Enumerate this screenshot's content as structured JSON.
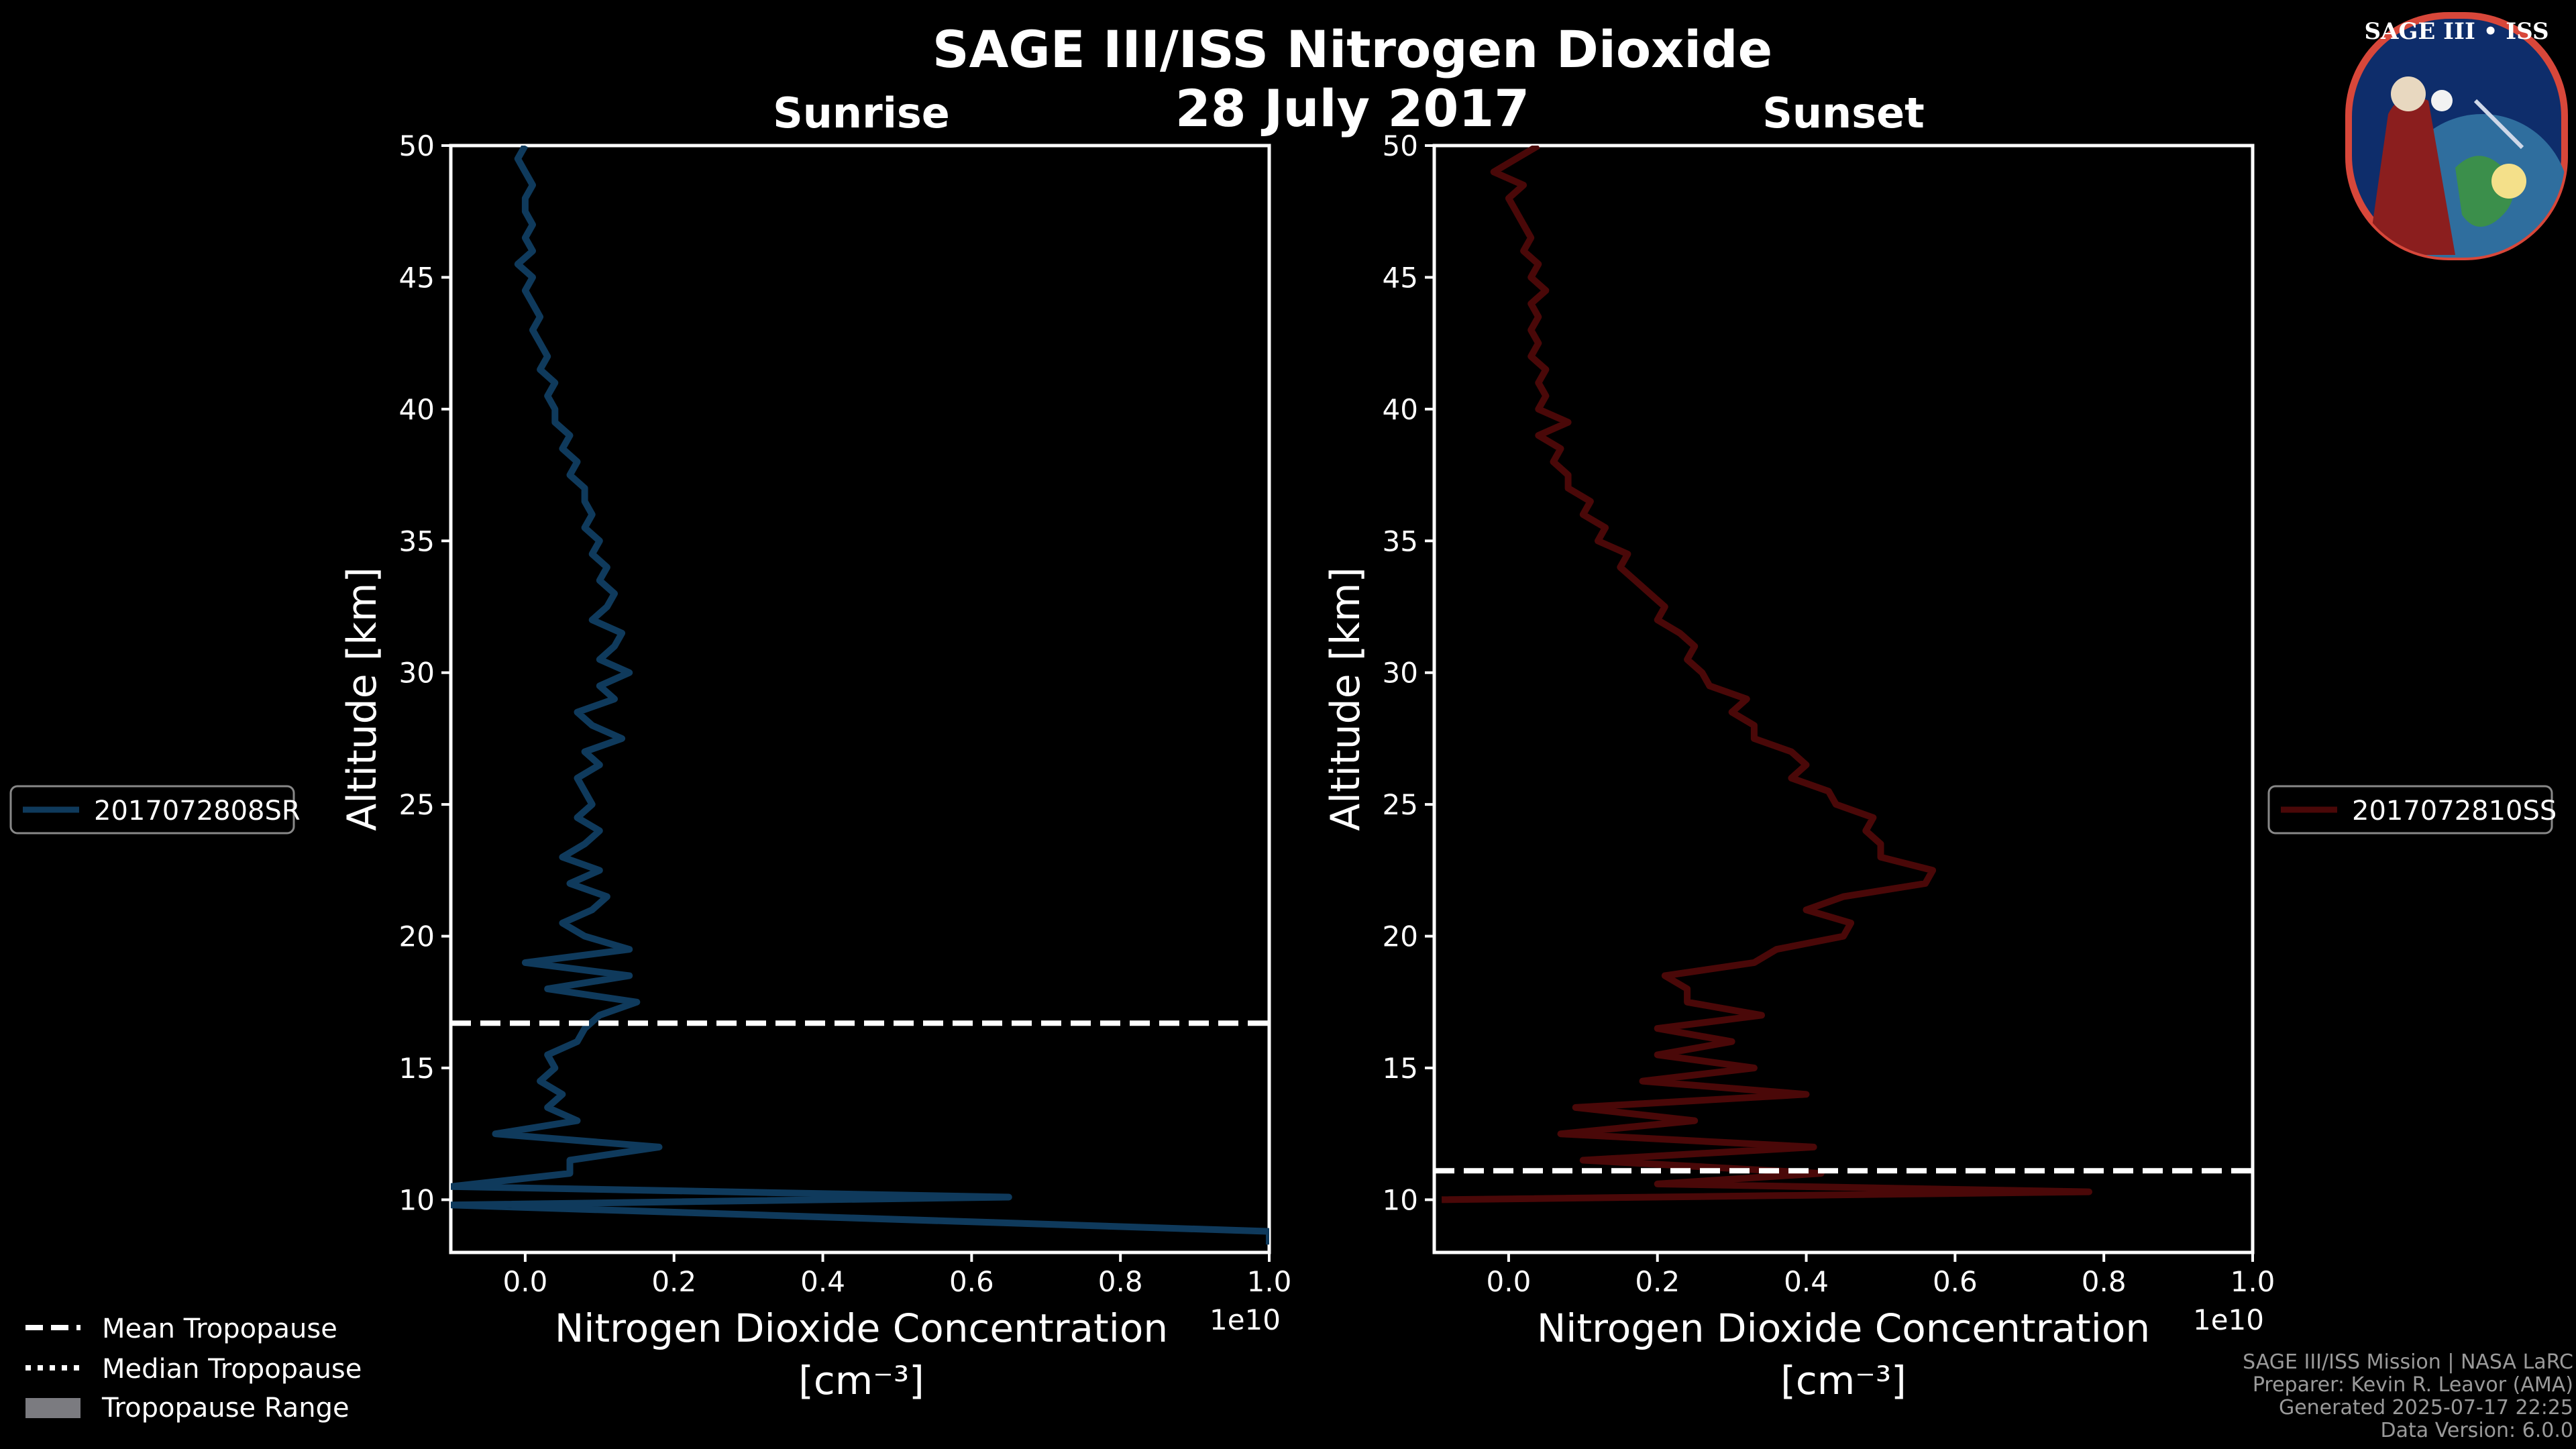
{
  "figure": {
    "title": "SAGE III/ISS Nitrogen Dioxide",
    "date": "28 July 2017"
  },
  "logo": {
    "text": "SAGE III • ISS"
  },
  "footer": {
    "lines": [
      "SAGE III/ISS Mission | NASA LaRC",
      "Preparer: Kevin R. Leavor (AMA)",
      "Generated 2025-07-17 22:25",
      "Data Version: 6.0.0"
    ]
  },
  "legend_tropopause": {
    "items": [
      "Mean Tropopause",
      "Median Tropopause",
      "Tropopause Range"
    ]
  },
  "colors": {
    "sunrise": "#0f3a5c",
    "sunset": "#4a0808",
    "tropopause": "#ffffff",
    "axes": "#ffffff"
  },
  "chart_data": [
    {
      "type": "line",
      "title": "Sunrise",
      "xlabel": "Nitrogen Dioxide Concentration",
      "xunit": "[cm⁻³]",
      "ylabel": "Altitude [km]",
      "x_scale_label": "1e10",
      "xlim": [
        -0.1,
        1.0
      ],
      "ylim": [
        8,
        50
      ],
      "xticks": [
        0.0,
        0.2,
        0.4,
        0.6,
        0.8,
        1.0
      ],
      "xtick_labels": [
        "0.0",
        "0.2",
        "0.4",
        "0.6",
        "0.8",
        "1.0"
      ],
      "yticks": [
        10,
        15,
        20,
        25,
        30,
        35,
        40,
        45,
        50
      ],
      "mean_tropopause_km": 16.7,
      "series": [
        {
          "name": "2017072808SR",
          "altitude_km": [
            8.3,
            8.8,
            9.8,
            10.1,
            10.5,
            11.0,
            11.5,
            12.0,
            12.5,
            13.0,
            13.5,
            14.0,
            14.5,
            15.0,
            15.5,
            16.0,
            16.5,
            17.0,
            17.5,
            18.0,
            18.5,
            19.0,
            19.5,
            20.0,
            20.5,
            21.0,
            21.5,
            22.0,
            22.5,
            23.0,
            23.5,
            24.0,
            24.5,
            25.0,
            25.5,
            26.0,
            26.5,
            27.0,
            27.5,
            28.0,
            28.5,
            29.0,
            29.5,
            30.0,
            30.5,
            31.0,
            31.5,
            32.0,
            32.5,
            33.0,
            33.5,
            34.0,
            34.5,
            35.0,
            35.5,
            36.0,
            36.5,
            37.0,
            37.5,
            38.0,
            38.5,
            39.0,
            39.5,
            40.0,
            40.5,
            41.0,
            41.5,
            42.0,
            42.5,
            43.0,
            43.5,
            44.0,
            44.5,
            45.0,
            45.5,
            46.0,
            46.5,
            47.0,
            47.5,
            48.0,
            48.5,
            49.0,
            49.5,
            50.0
          ],
          "values": [
            1.0,
            1.0,
            -0.1,
            0.65,
            -0.1,
            0.06,
            0.06,
            0.18,
            -0.04,
            0.07,
            0.03,
            0.05,
            0.02,
            0.04,
            0.03,
            0.07,
            0.08,
            0.1,
            0.15,
            0.03,
            0.14,
            0.0,
            0.14,
            0.08,
            0.05,
            0.09,
            0.11,
            0.06,
            0.1,
            0.05,
            0.08,
            0.1,
            0.07,
            0.09,
            0.08,
            0.07,
            0.1,
            0.08,
            0.13,
            0.09,
            0.07,
            0.12,
            0.1,
            0.14,
            0.1,
            0.12,
            0.13,
            0.09,
            0.11,
            0.12,
            0.1,
            0.11,
            0.09,
            0.1,
            0.08,
            0.09,
            0.08,
            0.08,
            0.06,
            0.07,
            0.05,
            0.06,
            0.04,
            0.04,
            0.03,
            0.04,
            0.02,
            0.03,
            0.02,
            0.01,
            0.02,
            0.01,
            0.0,
            0.01,
            -0.01,
            0.01,
            0.0,
            0.01,
            0.0,
            0.0,
            0.01,
            0.0,
            -0.01,
            0.0
          ]
        }
      ]
    },
    {
      "type": "line",
      "title": "Sunset",
      "xlabel": "Nitrogen Dioxide Concentration",
      "xunit": "[cm⁻³]",
      "ylabel": "Altitude [km]",
      "x_scale_label": "1e10",
      "xlim": [
        -0.1,
        1.0
      ],
      "ylim": [
        8,
        50
      ],
      "xticks": [
        0.0,
        0.2,
        0.4,
        0.6,
        0.8,
        1.0
      ],
      "xtick_labels": [
        "0.0",
        "0.2",
        "0.4",
        "0.6",
        "0.8",
        "1.0"
      ],
      "yticks": [
        10,
        15,
        20,
        25,
        30,
        35,
        40,
        45,
        50
      ],
      "mean_tropopause_km": 11.1,
      "series": [
        {
          "name": "2017072810SS",
          "altitude_km": [
            10.0,
            10.3,
            10.6,
            11.0,
            11.5,
            12.0,
            12.5,
            13.0,
            13.5,
            14.0,
            14.5,
            15.0,
            15.5,
            16.0,
            16.5,
            17.0,
            17.5,
            18.0,
            18.5,
            19.0,
            19.5,
            20.0,
            20.5,
            21.0,
            21.5,
            22.0,
            22.5,
            23.0,
            23.5,
            24.0,
            24.5,
            25.0,
            25.5,
            26.0,
            26.5,
            27.0,
            27.5,
            28.0,
            28.5,
            29.0,
            29.5,
            30.0,
            30.5,
            31.0,
            31.5,
            32.0,
            32.5,
            33.0,
            33.5,
            34.0,
            34.5,
            35.0,
            35.5,
            36.0,
            36.5,
            37.0,
            37.5,
            38.0,
            38.5,
            39.0,
            39.5,
            40.0,
            40.5,
            41.0,
            41.5,
            42.0,
            42.5,
            43.0,
            43.5,
            44.0,
            44.5,
            45.0,
            45.5,
            46.0,
            46.5,
            47.0,
            47.5,
            48.0,
            48.5,
            49.0,
            49.5,
            50.0
          ],
          "values": [
            -0.09,
            0.78,
            0.2,
            0.42,
            0.1,
            0.41,
            0.07,
            0.25,
            0.09,
            0.4,
            0.18,
            0.33,
            0.2,
            0.3,
            0.2,
            0.34,
            0.24,
            0.24,
            0.21,
            0.33,
            0.36,
            0.45,
            0.46,
            0.4,
            0.45,
            0.56,
            0.57,
            0.5,
            0.5,
            0.48,
            0.49,
            0.44,
            0.43,
            0.38,
            0.4,
            0.38,
            0.33,
            0.33,
            0.3,
            0.32,
            0.27,
            0.26,
            0.24,
            0.25,
            0.23,
            0.2,
            0.21,
            0.19,
            0.17,
            0.15,
            0.16,
            0.12,
            0.13,
            0.1,
            0.11,
            0.08,
            0.08,
            0.06,
            0.07,
            0.04,
            0.08,
            0.04,
            0.05,
            0.04,
            0.05,
            0.03,
            0.04,
            0.03,
            0.04,
            0.03,
            0.05,
            0.03,
            0.04,
            0.02,
            0.03,
            0.02,
            0.01,
            0.0,
            0.02,
            -0.02,
            0.01,
            0.04
          ]
        }
      ]
    }
  ]
}
